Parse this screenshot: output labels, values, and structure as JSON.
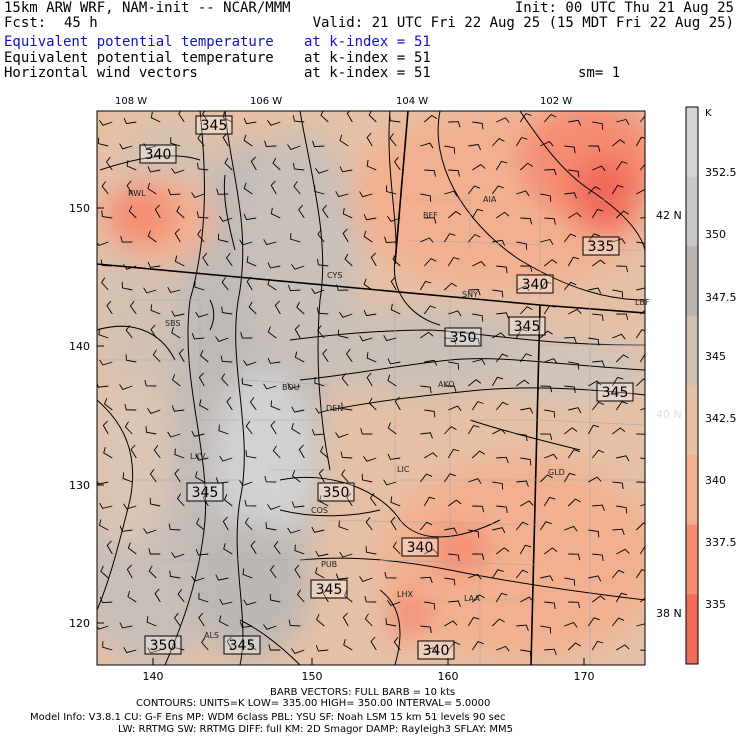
{
  "header": {
    "model": "15km ARW WRF, NAM-init -- NCAR/MMM",
    "init": "Init: 00 UTC Thu 21 Aug 25",
    "fcst_label": "Fcst:",
    "fcst_value": "45 h",
    "valid": "Valid: 21 UTC Fri 22 Aug 25 (15 MDT Fri 22 Aug 25)",
    "fields": [
      {
        "name": "Equivalent potential temperature",
        "level": "at k-index =",
        "k": "51"
      },
      {
        "name": "Equivalent potential temperature",
        "level": "at k-index =",
        "k": "51"
      },
      {
        "name": "Horizontal wind vectors",
        "level": "at k-index =",
        "k": "51"
      }
    ],
    "smoothing": "sm= 1"
  },
  "map": {
    "lon_labels": [
      "108 W",
      "106 W",
      "104 W",
      "102 W"
    ],
    "lat_labels": [
      "42 N",
      "40 N",
      "38 N"
    ],
    "grid_x_labels": [
      "140",
      "150",
      "160",
      "170"
    ],
    "grid_y_labels": [
      "150",
      "140",
      "130",
      "120"
    ],
    "stations": [
      "RWL",
      "BFF",
      "AIA",
      "CYS",
      "SNY",
      "SBS",
      "LBF",
      "BOU",
      "DEN",
      "AKO",
      "LXV",
      "LIC",
      "GLD",
      "COS",
      "PUB",
      "LHX",
      "LAA",
      "ALS"
    ],
    "contour_labels": [
      "345",
      "340",
      "335",
      "340",
      "345",
      "350",
      "345",
      "345",
      "350",
      "340",
      "345",
      "350",
      "345",
      "340"
    ]
  },
  "colorbar": {
    "unit": "K",
    "labels": [
      "352.5",
      "350",
      "347.5",
      "345",
      "342.5",
      "340",
      "337.5",
      "335"
    ],
    "colors": [
      "#d6d6d6",
      "#c8c8c8",
      "#b9b4b0",
      "#d2c1b2",
      "#e6c0a5",
      "#f2b090",
      "#f58d72",
      "#f26a5c"
    ]
  },
  "footer": {
    "barb": "BARB VECTORS: FULL BARB = 10 kts",
    "contours": "CONTOURS: UNITS=K LOW= 335.00 HIGH= 350.00 INTERVAL= 5.0000",
    "model_info_1": "Model Info: V3.8.1 CU: G-F Ens MP: WDM 6class PBL: YSU SF: Noah LSM 15 km 51 levels 90 sec",
    "model_info_2": "LW: RRTMG SW: RRTMG DIFF: full KM: 2D Smagor DAMP: Rayleigh3 SFLAY: MM5"
  }
}
